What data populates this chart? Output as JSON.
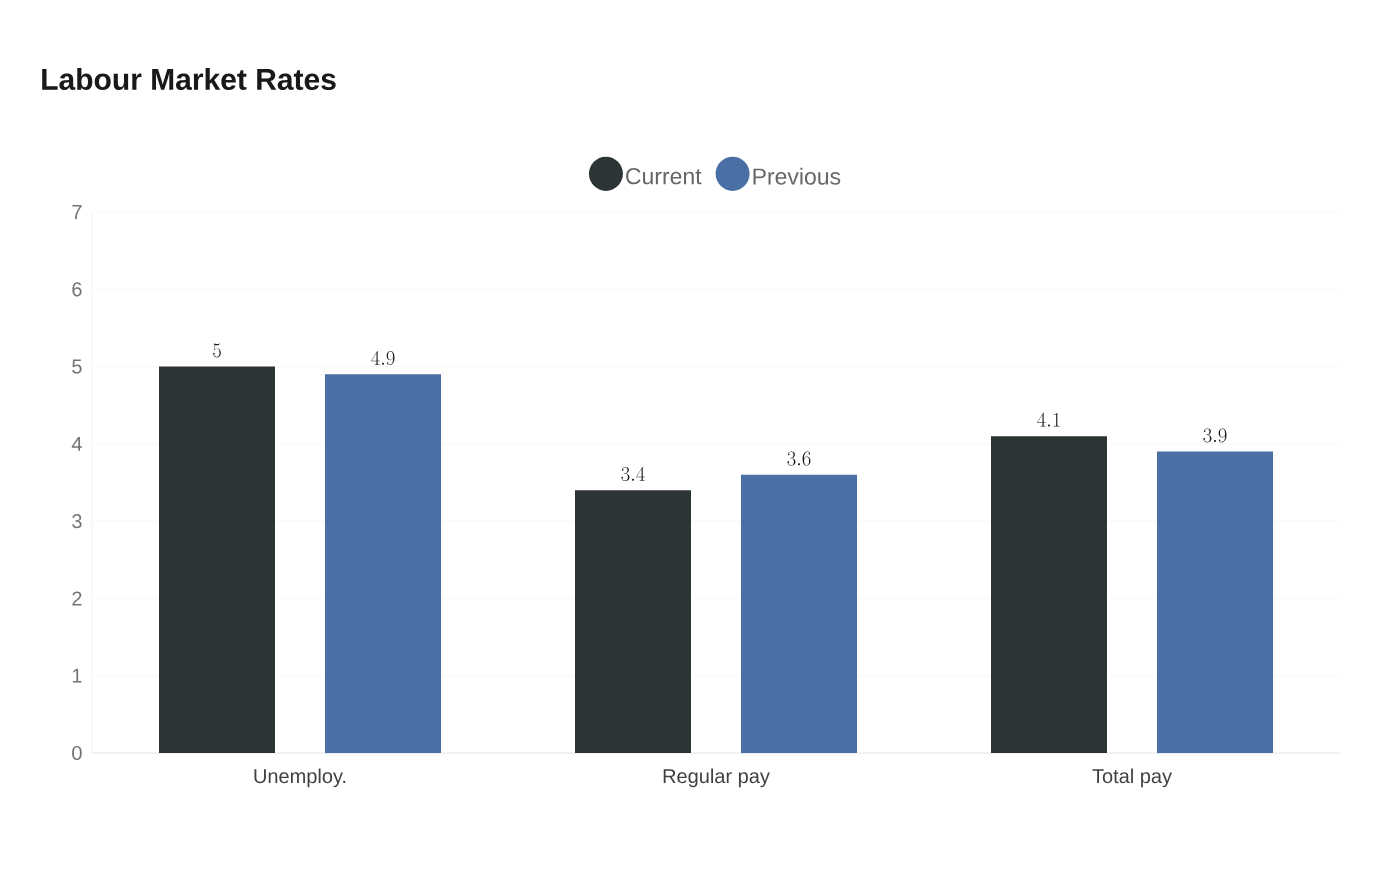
{
  "chart_data": {
    "type": "bar",
    "title": "Labour Market Rates",
    "categories": [
      "Unemploy.",
      "Regular pay",
      "Total pay"
    ],
    "series": [
      {
        "name": "Current",
        "color": "#2d3436",
        "values": [
          5,
          3.4,
          4.1
        ]
      },
      {
        "name": "Previous",
        "color": "#4a6fa5",
        "values": [
          4.9,
          3.6,
          3.9
        ]
      }
    ],
    "ylim": [
      0,
      7
    ],
    "yticks": [
      0,
      1,
      2,
      3,
      4,
      5,
      6,
      7
    ],
    "grid": "y",
    "legend": "top",
    "data_labels": true
  }
}
